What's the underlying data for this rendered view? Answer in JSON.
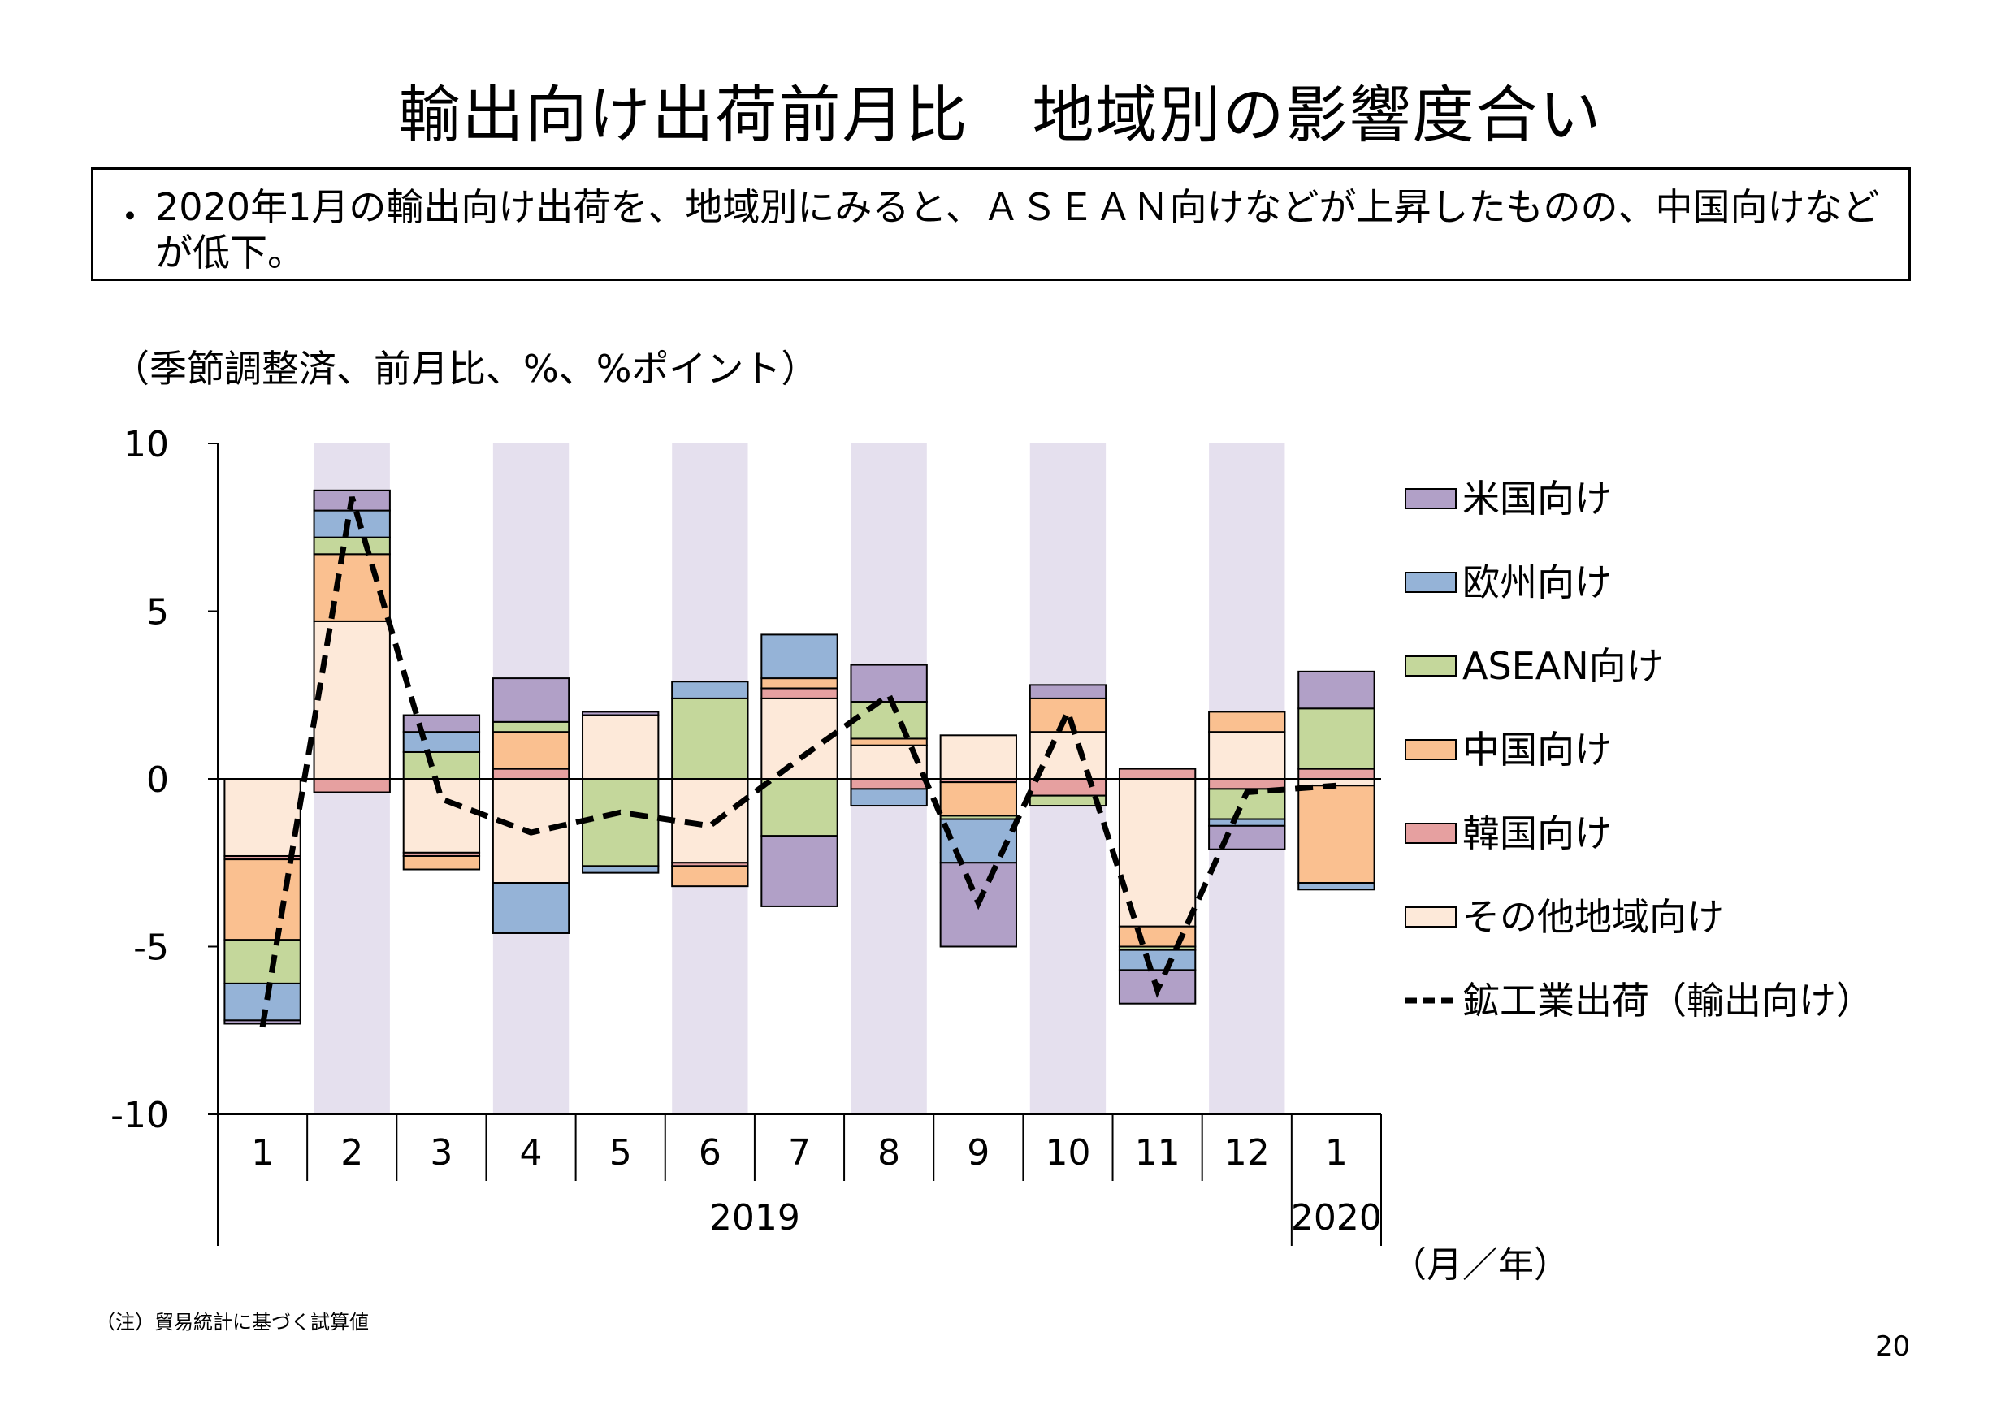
{
  "title": "輸出向け出荷前月比　地域別の影響度合い",
  "summary": {
    "bullet": "・",
    "text": "2020年1月の輸出向け出荷を、地域別にみると、ＡＳＥＡＮ向けなどが上昇したものの、中国向けなどが低下。"
  },
  "unit_label": "（季節調整済、前月比、%、%ポイント）",
  "note": "（注）貿易統計に基づく試算値",
  "page_number": "20",
  "chart_data": {
    "type": "bar",
    "stacked": true,
    "categories": [
      "1",
      "2",
      "3",
      "4",
      "5",
      "6",
      "7",
      "8",
      "9",
      "10",
      "11",
      "12",
      "1"
    ],
    "year_labels": [
      {
        "label": "2019",
        "from": 0,
        "to": 11
      },
      {
        "label": "2020",
        "from": 12,
        "to": 12
      }
    ],
    "x_unit_label": "（月／年）",
    "ylim": [
      -10,
      10
    ],
    "yticks": [
      10,
      5,
      0,
      -5,
      -10
    ],
    "shaded_categories": [
      1,
      3,
      5,
      7,
      9,
      11
    ],
    "shade_color": "#e5e0ee",
    "series": [
      {
        "name": "その他地域向け",
        "color": "#fde9d9",
        "values": [
          -2.3,
          4.7,
          -2.2,
          -3.1,
          1.9,
          -2.5,
          2.4,
          1.0,
          1.3,
          1.4,
          -4.4,
          1.4,
          -0.2
        ]
      },
      {
        "name": "韓国向け",
        "color": "#e6a0a0",
        "values": [
          -0.1,
          -0.4,
          -0.1,
          0.3,
          0.0,
          -0.1,
          0.3,
          -0.3,
          -0.1,
          -0.5,
          0.3,
          -0.3,
          0.3
        ]
      },
      {
        "name": "中国向け",
        "color": "#fac090",
        "values": [
          -2.4,
          2.0,
          -0.4,
          1.1,
          0.0,
          -0.6,
          0.3,
          0.2,
          -1.0,
          1.0,
          -0.6,
          0.6,
          -2.9
        ]
      },
      {
        "name": "ASEAN向け",
        "color": "#c4d79b",
        "values": [
          -1.3,
          0.5,
          0.8,
          0.3,
          -2.6,
          2.4,
          -1.7,
          1.1,
          -0.1,
          -0.3,
          -0.1,
          -0.9,
          1.8
        ]
      },
      {
        "name": "欧州向け",
        "color": "#95b3d7",
        "values": [
          -1.1,
          0.8,
          0.6,
          -1.5,
          -0.2,
          0.5,
          1.3,
          -0.5,
          -1.3,
          0.0,
          -0.6,
          -0.2,
          -0.2
        ]
      },
      {
        "name": "米国向け",
        "color": "#b1a0c7",
        "values": [
          -0.1,
          0.6,
          0.5,
          1.3,
          0.1,
          0.0,
          -2.1,
          1.1,
          -2.5,
          0.4,
          -1.0,
          -0.7,
          1.1
        ]
      }
    ],
    "line": {
      "name": "鉱工業出荷（輸出向け）",
      "color": "#000000",
      "dashed": true,
      "values": [
        -7.4,
        8.4,
        -0.6,
        -1.6,
        -1.0,
        -1.4,
        0.6,
        2.5,
        -3.7,
        2.0,
        -6.3,
        -0.4,
        -0.2
      ]
    },
    "legend_position": "right",
    "legend_order": [
      "米国向け",
      "欧州向け",
      "ASEAN向け",
      "中国向け",
      "韓国向け",
      "その他地域向け",
      "鉱工業出荷（輸出向け）"
    ]
  }
}
